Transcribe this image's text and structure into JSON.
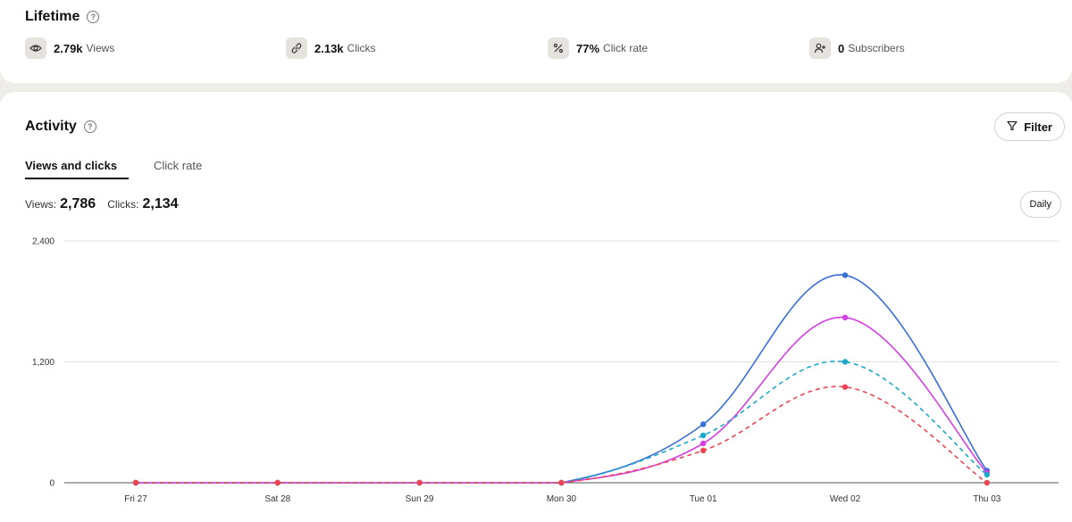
{
  "lifetime": {
    "title": "Lifetime",
    "stats": [
      {
        "icon": "eye-icon",
        "value": "2.79k",
        "label": "Views"
      },
      {
        "icon": "link-icon",
        "value": "2.13k",
        "label": "Clicks"
      },
      {
        "icon": "percent-icon",
        "value": "77%",
        "label": "Click rate"
      },
      {
        "icon": "add-user-icon",
        "value": "0",
        "label": "Subscribers"
      }
    ]
  },
  "activity": {
    "title": "Activity",
    "filter_label": "Filter",
    "tabs": [
      {
        "label": "Views and clicks",
        "active": true
      },
      {
        "label": "Click rate",
        "active": false
      }
    ],
    "views_label": "Views:",
    "views_total": "2,786",
    "clicks_label": "Clicks:",
    "clicks_total": "2,134",
    "interval_label": "Daily"
  },
  "chart_data": {
    "type": "line",
    "categories": [
      "Fri 27",
      "Sat 28",
      "Sun 29",
      "Mon 30",
      "Tue 01",
      "Wed 02",
      "Thu 03"
    ],
    "ylim": [
      0,
      2400
    ],
    "yticks": [
      "0",
      "1,200",
      "2,400"
    ],
    "ytick_values": [
      0,
      1200,
      2400
    ],
    "grid": true,
    "series": [
      {
        "color": "#3a6fd8",
        "dashed": false,
        "values": [
          0,
          0,
          0,
          0,
          580,
          2060,
          120
        ]
      },
      {
        "color": "#d63ee6",
        "dashed": false,
        "values": [
          0,
          0,
          0,
          0,
          390,
          1640,
          100
        ]
      },
      {
        "color": "#1ba8c9",
        "dashed": true,
        "values": [
          0,
          0,
          0,
          0,
          470,
          1200,
          80
        ]
      },
      {
        "color": "#ee4454",
        "dashed": true,
        "values": [
          0,
          0,
          0,
          0,
          320,
          950,
          0
        ]
      }
    ]
  }
}
